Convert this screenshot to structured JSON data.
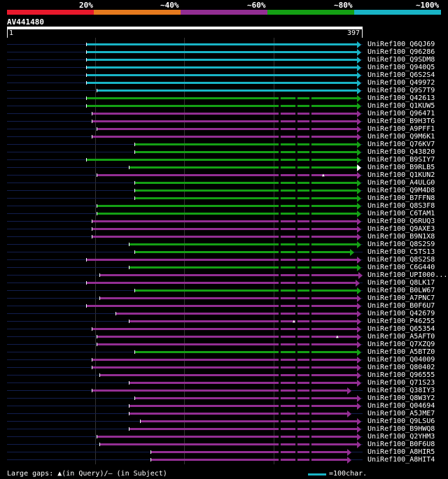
{
  "colors": {
    "band": [
      "#e8192c",
      "#e57a1e",
      "#932e93",
      "#14a014",
      "#19b4c6"
    ],
    "hit": {
      "c": "#19b4c6",
      "g": "#14a014",
      "p": "#932e93"
    },
    "backbone": "#121e4e"
  },
  "header": {
    "percent_labels": [
      "20%",
      "~40%",
      "~60%",
      "~80%",
      "~100%"
    ],
    "query_name": "AV441480",
    "ruler_start": "1",
    "ruler_end": "397"
  },
  "legend": {
    "gaps_text": "Large gaps: ▲(in Query)/– (in Subject)",
    "scale_text": "=100char."
  },
  "hits": [
    {
      "label": "UniRef100_Q6QJ69",
      "start": 123,
      "color": "c"
    },
    {
      "label": "UniRef100_Q96286",
      "start": 123,
      "color": "c"
    },
    {
      "label": "UniRef100_Q9SDM8",
      "start": 123,
      "color": "c"
    },
    {
      "label": "UniRef100_Q940Q5",
      "start": 123,
      "color": "c"
    },
    {
      "label": "UniRef100_Q6S2S4",
      "start": 123,
      "color": "c"
    },
    {
      "label": "UniRef100_Q49972",
      "start": 123,
      "color": "c"
    },
    {
      "label": "UniRef100_Q9S7T9",
      "start": 138,
      "color": "c"
    },
    {
      "label": "UniRef100_Q42613",
      "start": 123,
      "color": "g"
    },
    {
      "label": "UniRef100_Q1KUW5",
      "start": 123,
      "color": "g"
    },
    {
      "label": "UniRef100_Q96471",
      "start": 131,
      "color": "p"
    },
    {
      "label": "UniRef100_B9H3T6",
      "start": 131,
      "color": "p"
    },
    {
      "label": "UniRef100_A9PFF1",
      "start": 138,
      "color": "p"
    },
    {
      "label": "UniRef100_Q9M6K1",
      "start": 131,
      "color": "p"
    },
    {
      "label": "UniRef100_Q76KV7",
      "start": 192,
      "color": "g"
    },
    {
      "label": "UniRef100_Q43820",
      "start": 192,
      "color": "g"
    },
    {
      "label": "UniRef100_B9SIY7",
      "start": 123,
      "color": "g"
    },
    {
      "label": "UniRef100_B9RLB5",
      "start": 184,
      "color": "g",
      "arrow": "white"
    },
    {
      "label": "UniRef100_Q1KUN2",
      "start": 138,
      "color": "p",
      "qgap": 460
    },
    {
      "label": "UniRef100_A4ULG0",
      "start": 192,
      "color": "g"
    },
    {
      "label": "UniRef100_Q9M4D8",
      "start": 192,
      "color": "g"
    },
    {
      "label": "UniRef100_B7FFN8",
      "start": 192,
      "color": "g"
    },
    {
      "label": "UniRef100_Q8S3F8",
      "start": 138,
      "color": "g"
    },
    {
      "label": "UniRef100_C6TAM1",
      "start": 138,
      "color": "g"
    },
    {
      "label": "UniRef100_Q6RUQ3",
      "start": 131,
      "color": "p"
    },
    {
      "label": "UniRef100_Q9AXE3",
      "start": 131,
      "color": "p"
    },
    {
      "label": "UniRef100_B9N1X8",
      "start": 131,
      "color": "p"
    },
    {
      "label": "UniRef100_Q8S2S9",
      "start": 184,
      "color": "g"
    },
    {
      "label": "UniRef100_C5TS13",
      "start": 192,
      "color": "g",
      "end": 500
    },
    {
      "label": "UniRef100_Q8S2S8",
      "start": 123,
      "color": "p"
    },
    {
      "label": "UniRef100_C6G440",
      "start": 184,
      "color": "g"
    },
    {
      "label": "UniRef100_UPI000...",
      "start": 142,
      "color": "p",
      "end": 512
    },
    {
      "label": "UniRef100_Q8LK17",
      "start": 123,
      "color": "p",
      "end": 508
    },
    {
      "label": "UniRef100_B0LW67",
      "start": 192,
      "color": "g"
    },
    {
      "label": "UniRef100_A7PNC7",
      "start": 142,
      "color": "p"
    },
    {
      "label": "UniRef100_B0F6U7",
      "start": 123,
      "color": "p"
    },
    {
      "label": "UniRef100_Q42679",
      "start": 165,
      "color": "p"
    },
    {
      "label": "UniRef100_P46255",
      "start": 184,
      "color": "p",
      "qgap": 418
    },
    {
      "label": "UniRef100_Q65354",
      "start": 131,
      "color": "p"
    },
    {
      "label": "UniRef100_A5AFT0",
      "start": 138,
      "color": "p",
      "qgap": 480
    },
    {
      "label": "UniRef100_Q7XZQ9",
      "start": 138,
      "color": "p"
    },
    {
      "label": "UniRef100_A5BTZ0",
      "start": 192,
      "color": "g"
    },
    {
      "label": "UniRef100_Q04009",
      "start": 131,
      "color": "p"
    },
    {
      "label": "UniRef100_Q80402",
      "start": 131,
      "color": "p"
    },
    {
      "label": "UniRef100_Q96555",
      "start": 142,
      "color": "p"
    },
    {
      "label": "UniRef100_Q71S23",
      "start": 184,
      "color": "p"
    },
    {
      "label": "UniRef100_Q38IY3",
      "start": 131,
      "color": "p",
      "end": 496
    },
    {
      "label": "UniRef100_Q8W3Y2",
      "start": 192,
      "color": "p"
    },
    {
      "label": "UniRef100_Q04694",
      "start": 184,
      "color": "p"
    },
    {
      "label": "UniRef100_A5JME7",
      "start": 184,
      "color": "p",
      "end": 496
    },
    {
      "label": "UniRef100_Q9LSU6",
      "start": 200,
      "color": "p"
    },
    {
      "label": "UniRef100_B9HWQ8",
      "start": 184,
      "color": "p"
    },
    {
      "label": "UniRef100_Q2YHM3",
      "start": 138,
      "color": "p"
    },
    {
      "label": "UniRef100_B0F6U8",
      "start": 142,
      "color": "p"
    },
    {
      "label": "UniRef100_A8HIR5",
      "start": 215,
      "color": "p",
      "end": 496
    },
    {
      "label": "UniRef100_A8HIT4",
      "start": 215,
      "color": "p",
      "end": 496
    }
  ]
}
